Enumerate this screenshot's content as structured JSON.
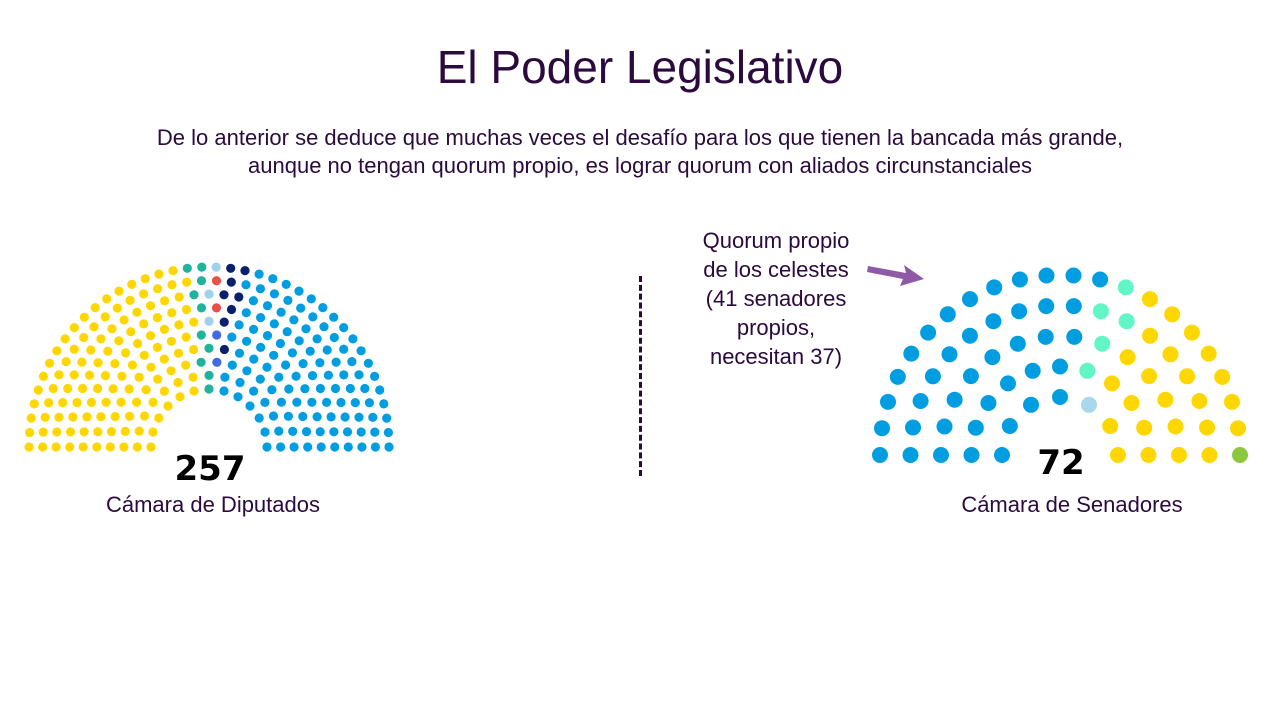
{
  "title": "El Poder Legislativo",
  "subtitle": "De lo anterior se deduce que muchas veces el desafío para los que tienen la bancada más grande, aunque no tengan quorum propio, es lograr quorum con aliados circunstanciales",
  "annotation": {
    "lines": [
      "Quorum propio",
      "de los celestes",
      "(41 senadores",
      "propios,",
      "necesitan 37)"
    ],
    "arrow_color": "#8e5aa8"
  },
  "chart_data": [
    {
      "type": "parliament",
      "label": "Cámara de Diputados",
      "total": 257,
      "total_label": "257",
      "blocs": [
        {
          "color": "#ffd700",
          "seats": 119
        },
        {
          "color": "#1fb39a",
          "seats": 10
        },
        {
          "color": "#9fd0ec",
          "seats": 3
        },
        {
          "color": "#e8504a",
          "seats": 2
        },
        {
          "color": "#4169e1",
          "seats": 2
        },
        {
          "color": "#0a1f6e",
          "seats": 8
        },
        {
          "color": "#009ee0",
          "seats": 113
        }
      ]
    },
    {
      "type": "parliament",
      "label": "Cámara de Senadores",
      "total": 72,
      "total_label": "72",
      "blocs": [
        {
          "color": "#009ee0",
          "seats": 41
        },
        {
          "color": "#62f5c5",
          "seats": 5
        },
        {
          "color": "#a8d8ea",
          "seats": 1
        },
        {
          "color": "#ffd700",
          "seats": 24
        },
        {
          "color": "#8dc63f",
          "seats": 1
        }
      ]
    }
  ]
}
